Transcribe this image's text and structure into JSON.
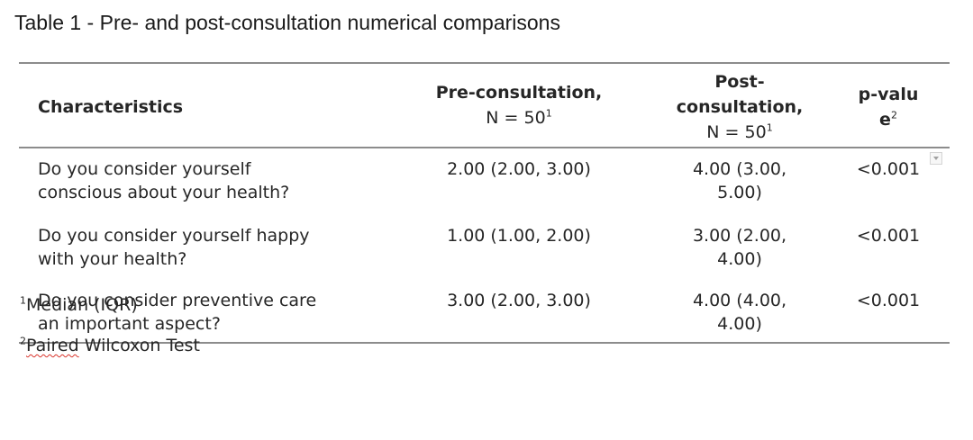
{
  "caption": "Table 1 - Pre- and post-consultation numerical comparisons",
  "table": {
    "headers": {
      "characteristics": "Characteristics",
      "pre_line1": "Pre-consultation,",
      "pre_line2": "N = 50",
      "pre_sup": "1",
      "post_line1": "Post-",
      "post_line2": "consultation,",
      "post_line3": "N = 50",
      "post_sup": "1",
      "p_line1": "p-valu",
      "p_line2": "e",
      "p_sup": "2"
    },
    "rows": [
      {
        "characteristic_line1": "Do you consider yourself",
        "characteristic_line2": "conscious about your health?",
        "pre": "2.00 (2.00, 3.00)",
        "post_line1": "4.00 (3.00,",
        "post_line2": "5.00)",
        "p": "<0.001"
      },
      {
        "characteristic_line1": "Do you consider yourself happy",
        "characteristic_line2": "with your health?",
        "pre": "1.00 (1.00, 2.00)",
        "post_line1": "3.00 (2.00,",
        "post_line2": "4.00)",
        "p": "<0.001"
      },
      {
        "characteristic_line1": "Do you consider preventive care",
        "characteristic_line2": "an important aspect?",
        "pre": "3.00 (2.00, 3.00)",
        "post_line1": "4.00 (4.00,",
        "post_line2": "4.00)",
        "p": "<0.001"
      }
    ]
  },
  "footnotes": {
    "f1_sup": "1",
    "f1_text": "Median (IQR)",
    "f2_sup": "2",
    "f2_word": "Paired",
    "f2_text": " Wilcoxon Test"
  },
  "colors": {
    "rule": "#8c8c8c",
    "text": "#262626",
    "spellcheck_underline": "#d9342b"
  },
  "icons": {
    "cell_dropdown": "chevron-down-icon"
  }
}
